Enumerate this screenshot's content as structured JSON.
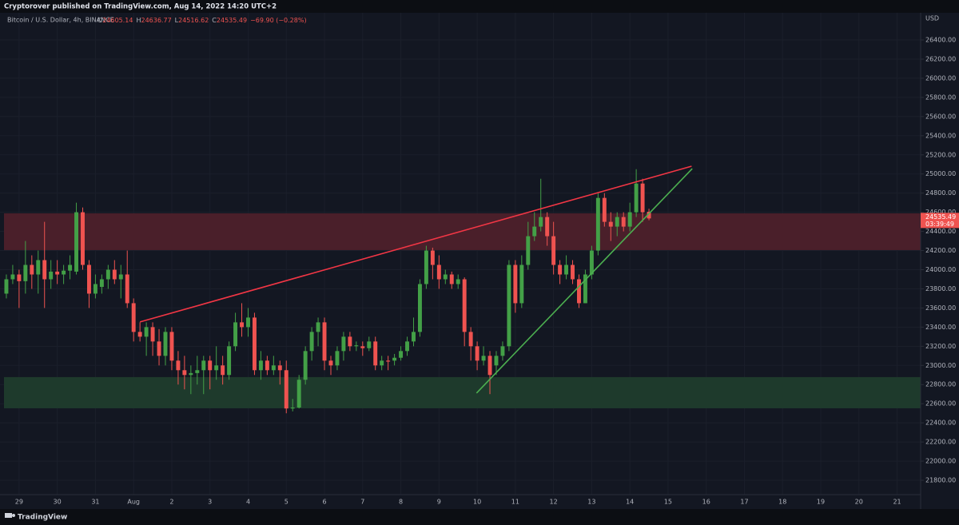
{
  "header": {
    "published": "Cryptorover published on TradingView.com, Aug 14, 2022 14:20 UTC+2",
    "brand": "TradingView"
  },
  "chart_data": {
    "type": "candlestick",
    "symbol": "Bitcoin / U.S. Dollar, 4h, BINANCE",
    "currency": "USD",
    "ohlc_letters": [
      "O",
      "H",
      "L",
      "C"
    ],
    "ohlc_values": [
      "24605.14",
      "24636.77",
      "24516.62",
      "24535.49"
    ],
    "change": "−69.90 (−0.28%)",
    "countdown": "03:39:49",
    "up_color": "#43a047",
    "down_color": "#ef5350",
    "grid": true,
    "open": [
      23750,
      23900,
      23950,
      23880,
      24050,
      23950,
      24100,
      23900,
      23980,
      23950,
      23990,
      23980,
      24600,
      24050,
      23750,
      23820,
      23900,
      24000,
      23900,
      23950,
      23650,
      23350,
      23300,
      23400,
      23250,
      23100,
      23350,
      23050,
      22950,
      22900,
      22920,
      22950,
      23050,
      22950,
      23000,
      22900,
      23200,
      23450,
      23400,
      23500,
      22950,
      23050,
      22950,
      23000,
      22950,
      22550,
      22560,
      22850,
      23150,
      23350,
      23450,
      23050,
      23000,
      23150,
      23300,
      23200,
      23200,
      23180,
      23250,
      23000,
      23050,
      23050,
      23080,
      23150,
      23250,
      23350,
      23850,
      24200,
      24050,
      23900,
      23950,
      23850,
      23900,
      23350,
      23200,
      23050,
      23100,
      23000,
      23100,
      23200,
      24050,
      23650,
      24050,
      24350,
      24450,
      24550,
      24350,
      24050,
      23950,
      24050,
      23900,
      23650,
      23950,
      24200,
      24750,
      24500,
      24450,
      24550,
      24450,
      24600,
      24900,
      24605.14
    ],
    "high": [
      23950,
      24050,
      24000,
      24300,
      24150,
      24200,
      24500,
      24100,
      24100,
      24050,
      24150,
      24700,
      24650,
      24100,
      23950,
      23950,
      24050,
      24100,
      24050,
      24200,
      23700,
      23450,
      23450,
      23450,
      23380,
      23400,
      23400,
      23150,
      23100,
      23000,
      23100,
      23100,
      23100,
      23200,
      23100,
      23250,
      23550,
      23650,
      23600,
      23550,
      23150,
      23100,
      23100,
      23050,
      23050,
      22650,
      22900,
      23200,
      23400,
      23500,
      23500,
      23100,
      23200,
      23350,
      23350,
      23250,
      23250,
      23300,
      23300,
      23100,
      23100,
      23120,
      23200,
      23300,
      23500,
      23900,
      24250,
      24230,
      24150,
      24000,
      23980,
      23950,
      23920,
      23400,
      23250,
      23200,
      23150,
      23150,
      23250,
      24100,
      24100,
      24150,
      24500,
      24600,
      24950,
      24600,
      24500,
      24100,
      24150,
      24100,
      23950,
      24000,
      24250,
      24800,
      24800,
      24600,
      24600,
      24600,
      24700,
      25050,
      24950,
      24636.77
    ],
    "low": [
      23700,
      23850,
      23600,
      23750,
      23800,
      23750,
      23600,
      23800,
      23850,
      23850,
      23900,
      23950,
      24000,
      23600,
      23700,
      23750,
      23800,
      23850,
      23700,
      23600,
      23250,
      23250,
      23100,
      23100,
      23000,
      23000,
      22950,
      22800,
      22750,
      22700,
      22800,
      22700,
      22750,
      22850,
      22800,
      22850,
      23150,
      23300,
      23300,
      22900,
      22850,
      22900,
      22900,
      22800,
      22500,
      22520,
      22550,
      22800,
      23050,
      23200,
      22950,
      22900,
      22950,
      23050,
      23150,
      23150,
      23100,
      23150,
      22950,
      22950,
      22950,
      23000,
      23050,
      23100,
      23200,
      23300,
      23800,
      23900,
      23800,
      23850,
      23800,
      23800,
      23200,
      23050,
      22950,
      23000,
      22700,
      22900,
      23050,
      23150,
      23550,
      23600,
      24000,
      24300,
      24400,
      24250,
      23950,
      23850,
      23900,
      23850,
      23600,
      23650,
      23900,
      24150,
      24450,
      24300,
      24350,
      24400,
      24400,
      24550,
      24500,
      24516.62
    ],
    "close": [
      23900,
      23950,
      23880,
      24050,
      23950,
      24100,
      23900,
      23980,
      23950,
      23990,
      24050,
      24600,
      24050,
      23750,
      23850,
      23900,
      24000,
      23900,
      23950,
      23650,
      23350,
      23300,
      23400,
      23250,
      23100,
      23350,
      23050,
      22950,
      22900,
      22920,
      22950,
      23050,
      22950,
      23000,
      22900,
      23200,
      23450,
      23400,
      23500,
      22950,
      23050,
      22950,
      23000,
      22950,
      22550,
      22560,
      22850,
      23150,
      23350,
      23450,
      23050,
      23000,
      23150,
      23300,
      23200,
      23210,
      23180,
      23250,
      23000,
      23050,
      23040,
      23080,
      23150,
      23250,
      23350,
      23850,
      24200,
      24050,
      23900,
      23950,
      23850,
      23900,
      23350,
      23200,
      23050,
      23100,
      22900,
      23100,
      23200,
      24050,
      23650,
      24050,
      24350,
      24450,
      24550,
      24350,
      24050,
      23950,
      24050,
      23900,
      23650,
      23950,
      24200,
      24750,
      24500,
      24450,
      24550,
      24450,
      24600,
      24900,
      24600,
      24535.49
    ],
    "zones": [
      {
        "color": "#4a1f2a",
        "from": 24205,
        "to": 24589
      },
      {
        "color": "#1e3a2c",
        "from": 22552,
        "to": 22878
      }
    ],
    "trendlines": [
      {
        "color": "#f23645",
        "x": [
          21,
          107.7
        ],
        "y": [
          23454,
          25081
        ]
      },
      {
        "color": "#4caf50",
        "x": [
          73.9,
          107.8
        ],
        "y": [
          22711,
          25056
        ]
      }
    ],
    "xlim": [
      -1,
      143.7
    ],
    "ylim": [
      21650,
      26684
    ],
    "yticks": [
      {
        "value": 21800,
        "label": "21800.00"
      },
      {
        "value": 22000,
        "label": "22000.00"
      },
      {
        "value": 22200,
        "label": "22200.00"
      },
      {
        "value": 22400,
        "label": "22400.00"
      },
      {
        "value": 22600,
        "label": "22600.00"
      },
      {
        "value": 22800,
        "label": "22800.00"
      },
      {
        "value": 23000,
        "label": "23000.00"
      },
      {
        "value": 23200,
        "label": "23200.00"
      },
      {
        "value": 23400,
        "label": "23400.00"
      },
      {
        "value": 23600,
        "label": "23600.00"
      },
      {
        "value": 23800,
        "label": "23800.00"
      },
      {
        "value": 24000,
        "label": "24000.00"
      },
      {
        "value": 24200,
        "label": "24200.00"
      },
      {
        "value": 24400,
        "label": "24400.00"
      },
      {
        "value": 24600,
        "label": "24600.00"
      },
      {
        "value": 24800,
        "label": "24800.00"
      },
      {
        "value": 25000,
        "label": "25000.00"
      },
      {
        "value": 25200,
        "label": "25200.00"
      },
      {
        "value": 25400,
        "label": "25400.00"
      },
      {
        "value": 25600,
        "label": "25600.00"
      },
      {
        "value": 25800,
        "label": "25800.00"
      },
      {
        "value": 26000,
        "label": "26000.00"
      },
      {
        "value": 26200,
        "label": "26200.00"
      },
      {
        "value": 26400,
        "label": "26400.00"
      }
    ],
    "xticks": [
      {
        "value": 2,
        "label": "29"
      },
      {
        "value": 8,
        "label": "30"
      },
      {
        "value": 14,
        "label": "31"
      },
      {
        "value": 20,
        "label": "Aug"
      },
      {
        "value": 26,
        "label": "2"
      },
      {
        "value": 32,
        "label": "3"
      },
      {
        "value": 38,
        "label": "4"
      },
      {
        "value": 44,
        "label": "5"
      },
      {
        "value": 50,
        "label": "6"
      },
      {
        "value": 56,
        "label": "7"
      },
      {
        "value": 62,
        "label": "8"
      },
      {
        "value": 68,
        "label": "9"
      },
      {
        "value": 74,
        "label": "10"
      },
      {
        "value": 80,
        "label": "11"
      },
      {
        "value": 86,
        "label": "12"
      },
      {
        "value": 92,
        "label": "13"
      },
      {
        "value": 98,
        "label": "14"
      },
      {
        "value": 104,
        "label": "15"
      },
      {
        "value": 110,
        "label": "16"
      },
      {
        "value": 116,
        "label": "17"
      },
      {
        "value": 122,
        "label": "18"
      },
      {
        "value": 128,
        "label": "19"
      },
      {
        "value": 134,
        "label": "20"
      },
      {
        "value": 140,
        "label": "21"
      }
    ]
  }
}
